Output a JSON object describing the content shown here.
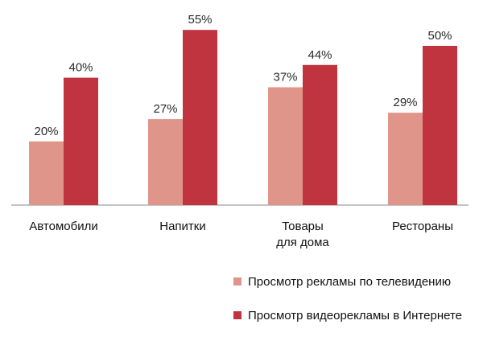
{
  "chart_data": {
    "type": "bar",
    "categories": [
      [
        "Автомобили"
      ],
      [
        "Напитки"
      ],
      [
        "Товары",
        "для дома"
      ],
      [
        "Рестораны"
      ]
    ],
    "series": [
      {
        "name": "Просмотр рекламы по телевидению",
        "values": [
          20,
          27,
          37,
          29
        ],
        "color": "#e0958a"
      },
      {
        "name": "Просмотр видеорекламы в Интернете",
        "values": [
          40,
          55,
          44,
          50
        ],
        "color": "#c0343f"
      }
    ],
    "value_suffix": "%",
    "ylim": [
      0,
      60
    ],
    "grid": false,
    "legend_position": "bottom-right"
  }
}
